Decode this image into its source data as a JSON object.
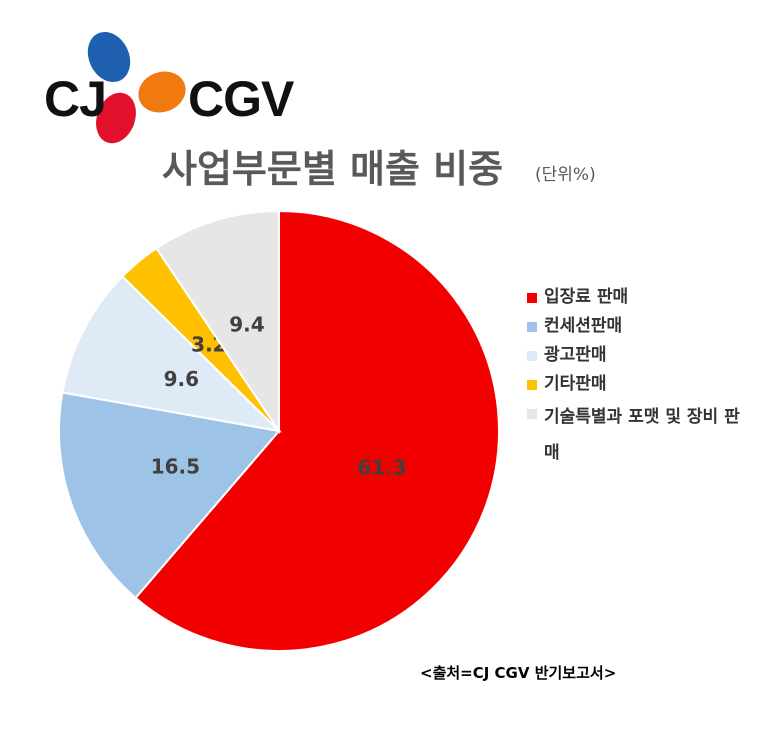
{
  "chart_data": {
    "type": "pie",
    "logo": {
      "left": "CJ",
      "right": "CGV"
    },
    "title": "사업부문별 매출 비중",
    "subtitle": "(단위%)",
    "categories": [
      "입장료 판매",
      "컨세션판매",
      "광고판매",
      "기타판매",
      "기술특별과 포맷 및 장비 판매"
    ],
    "values": [
      61.3,
      16.5,
      9.6,
      3.2,
      9.4
    ],
    "colors": [
      "#f20000",
      "#9dc3e6",
      "#deebf7",
      "#ffc000",
      "#e7e6e6"
    ],
    "legend_position": "right",
    "source": "<출처=CJ CGV 반기보고서>"
  }
}
